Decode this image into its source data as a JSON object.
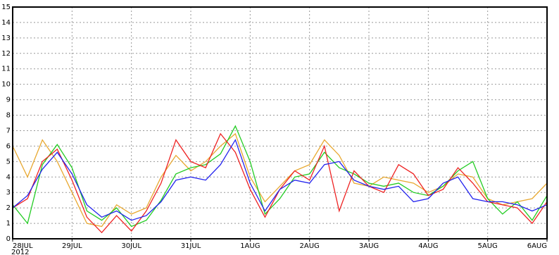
{
  "chart_data": {
    "type": "line",
    "x": [
      0,
      0.25,
      0.5,
      0.75,
      1,
      1.25,
      1.5,
      1.75,
      2,
      2.25,
      2.5,
      2.75,
      3,
      3.25,
      3.5,
      3.75,
      4,
      4.25,
      4.5,
      4.75,
      5,
      5.25,
      5.5,
      5.75,
      6,
      6.25,
      6.5,
      6.75,
      7,
      7.25,
      7.5,
      7.75,
      8,
      8.25,
      8.5,
      8.75,
      9
    ],
    "x_sublabel": "2012",
    "series": [
      {
        "color": "#e8a830",
        "values": [
          6.0,
          4.0,
          6.4,
          5.0,
          3.0,
          1.0,
          0.8,
          2.2,
          1.6,
          2.0,
          4.0,
          5.4,
          4.4,
          5.0,
          6.0,
          6.8,
          4.0,
          2.4,
          3.4,
          4.4,
          4.8,
          6.4,
          5.4,
          3.6,
          3.4,
          4.0,
          3.8,
          3.6,
          3.0,
          3.4,
          4.2,
          4.0,
          2.6,
          2.2,
          2.4,
          2.6,
          3.6
        ]
      },
      {
        "color": "#22cc22",
        "values": [
          2.2,
          1.0,
          4.8,
          6.1,
          4.6,
          1.8,
          1.2,
          2.0,
          0.8,
          1.2,
          2.5,
          4.2,
          4.6,
          4.8,
          5.5,
          7.3,
          5.0,
          1.6,
          2.6,
          4.0,
          4.2,
          5.6,
          4.6,
          4.2,
          3.6,
          3.4,
          3.6,
          3.0,
          2.8,
          3.4,
          4.4,
          5.0,
          2.6,
          1.6,
          2.4,
          1.2,
          2.8
        ]
      },
      {
        "color": "#ee2222",
        "values": [
          2.0,
          2.6,
          5.0,
          5.8,
          3.8,
          1.4,
          0.4,
          1.5,
          0.5,
          1.8,
          3.6,
          6.4,
          5.0,
          4.6,
          6.8,
          5.6,
          3.2,
          1.4,
          3.2,
          4.4,
          3.8,
          6.0,
          1.8,
          4.4,
          3.4,
          3.0,
          4.8,
          4.2,
          2.8,
          3.2,
          4.6,
          3.6,
          2.4,
          2.2,
          2.0,
          1.0,
          2.4
        ]
      },
      {
        "color": "#2222ee",
        "values": [
          2.0,
          2.8,
          4.5,
          5.6,
          4.2,
          2.2,
          1.4,
          1.8,
          1.2,
          1.5,
          2.4,
          3.8,
          4.0,
          3.8,
          4.8,
          6.4,
          3.6,
          1.8,
          3.2,
          3.8,
          3.6,
          4.8,
          5.0,
          3.8,
          3.4,
          3.2,
          3.4,
          2.4,
          2.6,
          3.6,
          4.0,
          2.6,
          2.4,
          2.4,
          2.2,
          1.8,
          2.2
        ]
      }
    ],
    "xlim": [
      0,
      9
    ],
    "xticks": [
      {
        "value": 0,
        "label": "28JUL"
      },
      {
        "value": 1,
        "label": "29JUL"
      },
      {
        "value": 2,
        "label": "30JUL"
      },
      {
        "value": 3,
        "label": "31JUL"
      },
      {
        "value": 4,
        "label": "1AUG"
      },
      {
        "value": 5,
        "label": "2AUG"
      },
      {
        "value": 6,
        "label": "3AUG"
      },
      {
        "value": 7,
        "label": "4AUG"
      },
      {
        "value": 8,
        "label": "5AUG"
      },
      {
        "value": 9,
        "label": "6AUG"
      }
    ],
    "ylim": [
      0,
      15
    ],
    "yticks": [
      0,
      1,
      2,
      3,
      4,
      5,
      6,
      7,
      8,
      9,
      10,
      11,
      12,
      13,
      14,
      15
    ],
    "grid": true
  }
}
